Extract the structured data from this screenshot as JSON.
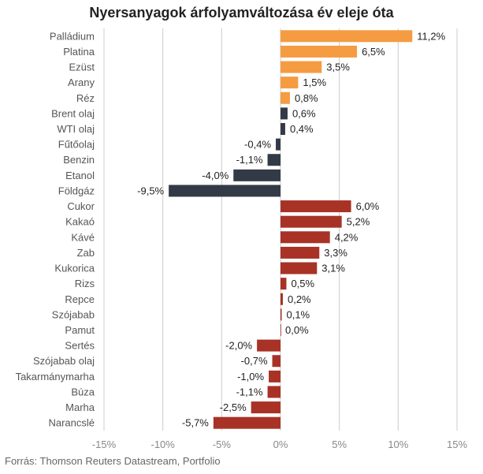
{
  "chart_data": {
    "type": "bar",
    "orientation": "horizontal",
    "title": "Nyersanyagok árfolyamváltozása év eleje óta",
    "xlabel": "",
    "ylabel": "",
    "xlim": [
      -15,
      15
    ],
    "xticks": [
      -15,
      -10,
      -5,
      0,
      5,
      10,
      15
    ],
    "xtick_labels": [
      "-15%",
      "-10%",
      "-5%",
      "0%",
      "5%",
      "10%",
      "15%"
    ],
    "grid": "vertical",
    "legend": "none",
    "colors": {
      "precious": "#F59B42",
      "energy": "#333a47",
      "agri": "#A83226",
      "axis": "#cccccc"
    },
    "bars": [
      {
        "category": "Palládium",
        "value": 11.2,
        "label": "11,2%",
        "group": "precious"
      },
      {
        "category": "Platina",
        "value": 6.5,
        "label": "6,5%",
        "group": "precious"
      },
      {
        "category": "Ezüst",
        "value": 3.5,
        "label": "3,5%",
        "group": "precious"
      },
      {
        "category": "Arany",
        "value": 1.5,
        "label": "1,5%",
        "group": "precious"
      },
      {
        "category": "Réz",
        "value": 0.8,
        "label": "0,8%",
        "group": "precious"
      },
      {
        "category": "Brent olaj",
        "value": 0.6,
        "label": "0,6%",
        "group": "energy"
      },
      {
        "category": "WTI olaj",
        "value": 0.4,
        "label": "0,4%",
        "group": "energy"
      },
      {
        "category": "Fűtőolaj",
        "value": -0.4,
        "label": "-0,4%",
        "group": "energy"
      },
      {
        "category": "Benzin",
        "value": -1.1,
        "label": "-1,1%",
        "group": "energy"
      },
      {
        "category": "Etanol",
        "value": -4.0,
        "label": "-4,0%",
        "group": "energy"
      },
      {
        "category": "Földgáz",
        "value": -9.5,
        "label": "-9,5%",
        "group": "energy"
      },
      {
        "category": "Cukor",
        "value": 6.0,
        "label": "6,0%",
        "group": "agri"
      },
      {
        "category": "Kakaó",
        "value": 5.2,
        "label": "5,2%",
        "group": "agri"
      },
      {
        "category": "Kávé",
        "value": 4.2,
        "label": "4,2%",
        "group": "agri"
      },
      {
        "category": "Zab",
        "value": 3.3,
        "label": "3,3%",
        "group": "agri"
      },
      {
        "category": "Kukorica",
        "value": 3.1,
        "label": "3,1%",
        "group": "agri"
      },
      {
        "category": "Rizs",
        "value": 0.5,
        "label": "0,5%",
        "group": "agri"
      },
      {
        "category": "Repce",
        "value": 0.2,
        "label": "0,2%",
        "group": "agri"
      },
      {
        "category": "Szójabab",
        "value": 0.1,
        "label": "0,1%",
        "group": "agri"
      },
      {
        "category": "Pamut",
        "value": 0.0,
        "label": "0,0%",
        "group": "agri"
      },
      {
        "category": "Sertés",
        "value": -2.0,
        "label": "-2,0%",
        "group": "agri"
      },
      {
        "category": "Szójabab olaj",
        "value": -0.7,
        "label": "-0,7%",
        "group": "agri"
      },
      {
        "category": "Takarmánymarha",
        "value": -1.0,
        "label": "-1,0%",
        "group": "agri"
      },
      {
        "category": "Búza",
        "value": -1.1,
        "label": "-1,1%",
        "group": "agri"
      },
      {
        "category": "Marha",
        "value": -2.5,
        "label": "-2,5%",
        "group": "agri"
      },
      {
        "category": "Narancslé",
        "value": -5.7,
        "label": "-5,7%",
        "group": "agri"
      }
    ]
  },
  "source": "Forrás: Thomson Reuters Datastream, Portfolio"
}
